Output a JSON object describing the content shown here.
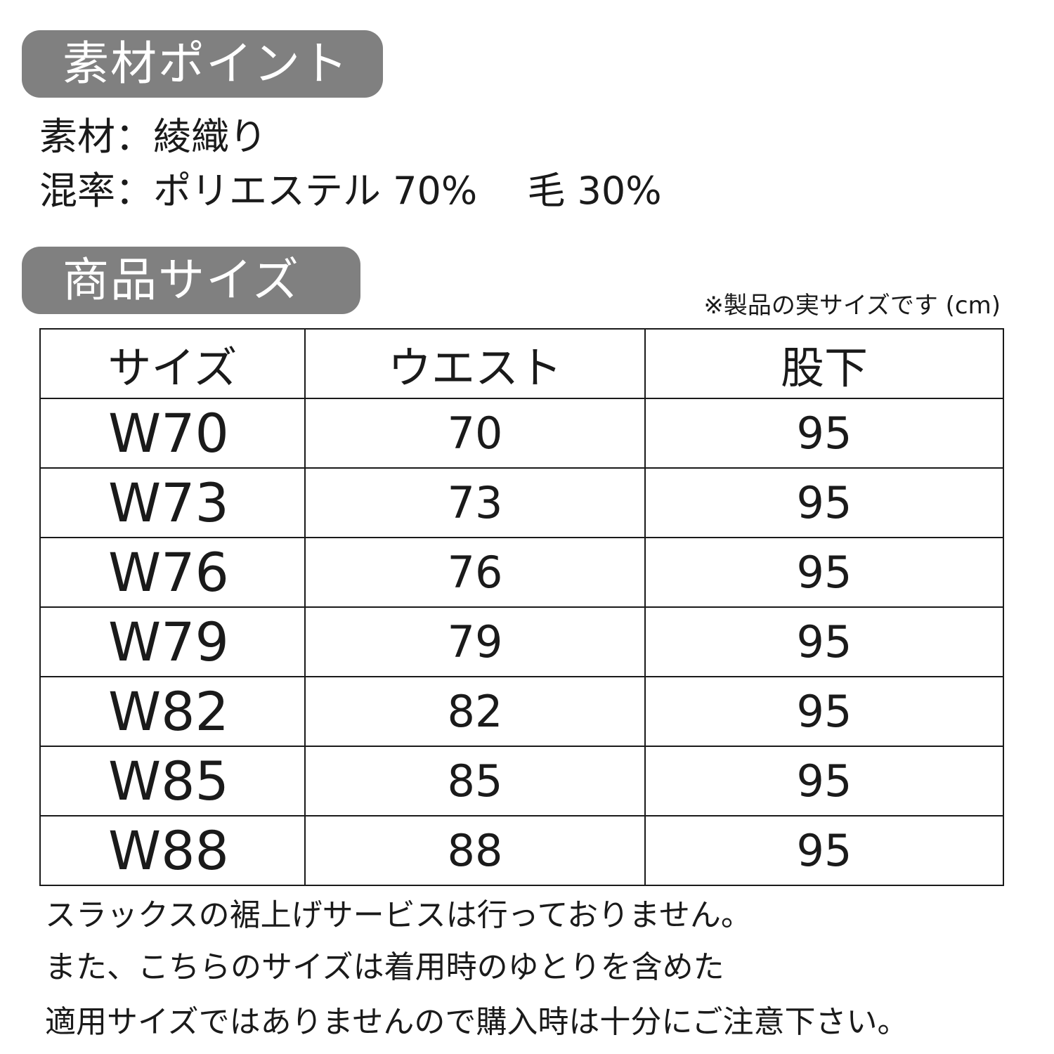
{
  "material_section": {
    "title": "素材ポイント",
    "material_line": "素材：綾織り",
    "blend_line": "混率：ポリエステル 70%　 毛 30%"
  },
  "size_section": {
    "title": "商品サイズ",
    "note": "※製品の実サイズです (cm)",
    "headers": [
      "サイズ",
      "ウエスト",
      "股下"
    ],
    "rows": [
      [
        "W70",
        "70",
        "95"
      ],
      [
        "W73",
        "73",
        "95"
      ],
      [
        "W76",
        "76",
        "95"
      ],
      [
        "W79",
        "79",
        "95"
      ],
      [
        "W82",
        "82",
        "95"
      ],
      [
        "W85",
        "85",
        "95"
      ],
      [
        "W88",
        "88",
        "95"
      ]
    ]
  },
  "footer": [
    "スラックスの裾上げサービスは行っておりません。",
    "また、こちらのサイズは着用時のゆとりを含めた",
    "適用サイズではありませんので購入時は十分にご注意下さい。"
  ],
  "colors": {
    "badge": "#808080",
    "text": "#1a1a1a"
  }
}
